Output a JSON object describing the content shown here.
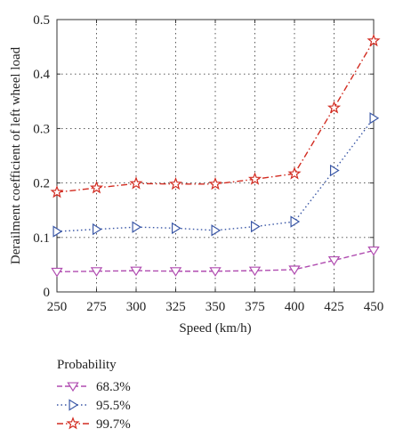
{
  "chart_data": {
    "type": "line",
    "xlabel": "Speed (km/h)",
    "ylabel": "Derailment coefficient of left wheel load",
    "x": [
      250,
      275,
      300,
      325,
      350,
      375,
      400,
      425,
      450
    ],
    "xlim": [
      250,
      450
    ],
    "ylim": [
      0,
      0.5
    ],
    "yticks": [
      "0",
      "0.1",
      "0.2",
      "0.3",
      "0.4",
      "0.5"
    ],
    "grid": true,
    "legend_title": "Probability",
    "legend_position": "bottom-left, below plot",
    "series": [
      {
        "name": "68.3%",
        "color": "#b04cb0",
        "line_style": "dashed",
        "marker": "triangle-down",
        "values": [
          0.037,
          0.038,
          0.039,
          0.038,
          0.038,
          0.039,
          0.041,
          0.058,
          0.076
        ]
      },
      {
        "name": "95.5%",
        "color": "#3a57a6",
        "line_style": "dotted",
        "marker": "triangle-right",
        "values": [
          0.111,
          0.115,
          0.119,
          0.117,
          0.113,
          0.12,
          0.129,
          0.223,
          0.319
        ]
      },
      {
        "name": "99.7%",
        "color": "#d22b20",
        "line_style": "dash-dot",
        "marker": "star",
        "values": [
          0.183,
          0.191,
          0.199,
          0.198,
          0.198,
          0.207,
          0.217,
          0.338,
          0.461
        ]
      }
    ]
  }
}
